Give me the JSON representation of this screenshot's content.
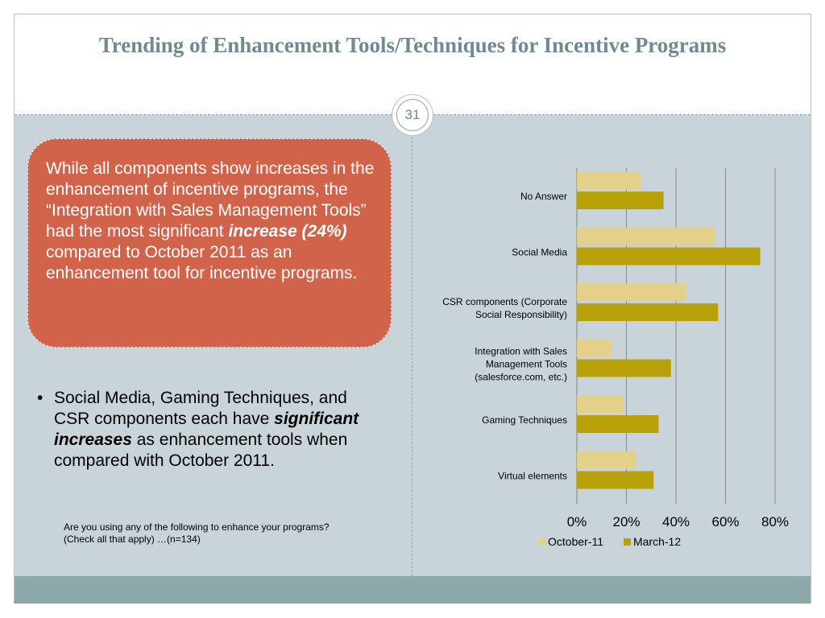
{
  "slide": {
    "title": "Trending of Enhancement Tools/Techniques for Incentive Programs",
    "page_number": "31"
  },
  "callout": {
    "text_before": "While all components show increases in the enhancement of incentive programs, the “Integration with Sales Management Tools” had the most significant ",
    "emphasis": "increase (24%)",
    "text_after": " compared to October 2011 as an enhancement tool for incentive programs."
  },
  "bullet": {
    "marker": "•",
    "text_before": "Social Media, Gaming Techniques, and CSR components each have ",
    "emphasis": "significant increases",
    "text_after": " as enhancement tools when compared with October 2011."
  },
  "note": "Are you using any of the following to enhance your programs? (Check all that apply) …(n=134)",
  "colors": {
    "title": "#6f8a92",
    "callout_bg": "#d2634b",
    "content_bg": "#c9d3da",
    "footer_bg": "#8da8ab",
    "october": "#e3d08a",
    "march": "#b9a10a"
  },
  "chart_data": {
    "type": "bar",
    "orientation": "horizontal",
    "title": "",
    "xlabel": "",
    "ylabel": "",
    "categories": [
      [
        "No Answer"
      ],
      [
        "Social Media"
      ],
      [
        "CSR components (Corporate",
        "Social Responsibility)"
      ],
      [
        "Integration with Sales",
        "Management Tools",
        "(salesforce.com, etc.)"
      ],
      [
        "Gaming Techniques"
      ],
      [
        "Virtual elements"
      ]
    ],
    "series": [
      {
        "name": "October-11",
        "color": "#e3d08a",
        "values": [
          26,
          56,
          44,
          14,
          19,
          24
        ]
      },
      {
        "name": "March-12",
        "color": "#b9a10a",
        "values": [
          35,
          74,
          57,
          38,
          33,
          31
        ]
      }
    ],
    "xlim": [
      0,
      80
    ],
    "xticks": [
      "0%",
      "20%",
      "40%",
      "60%",
      "80%"
    ],
    "grid": true,
    "legend": "bottom"
  }
}
